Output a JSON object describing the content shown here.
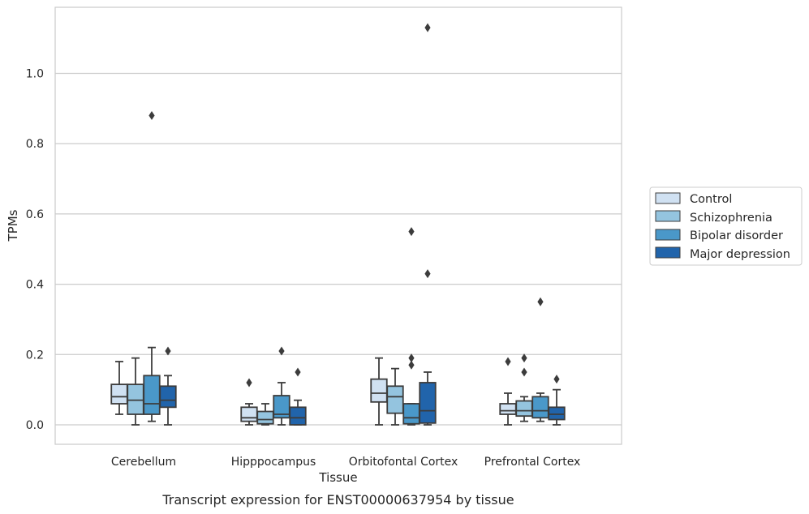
{
  "chart_data": {
    "type": "box",
    "xlabel": "Tissue",
    "ylabel": "TPMs",
    "caption": "Transcript expression for ENST00000637954 by tissue",
    "categories": [
      "Cerebellum",
      "Hipppocampus",
      "Orbitofontal Cortex",
      "Prefrontal Cortex"
    ],
    "ylim": [
      -0.055,
      1.185
    ],
    "yticks": [
      0.0,
      0.2,
      0.4,
      0.6,
      0.8,
      1.0
    ],
    "ytick_labels": [
      "0.0",
      "0.2",
      "0.4",
      "0.6",
      "0.8",
      "1.0"
    ],
    "grid": "horizontal",
    "legend_position": "right",
    "series": [
      {
        "name": "Control",
        "color": "#d0e1f2",
        "boxes": [
          {
            "whislo": 0.03,
            "q1": 0.06,
            "med": 0.08,
            "q3": 0.115,
            "whishi": 0.18,
            "fliers": []
          },
          {
            "whislo": 0.0,
            "q1": 0.01,
            "med": 0.02,
            "q3": 0.05,
            "whishi": 0.06,
            "fliers": [
              0.12
            ]
          },
          {
            "whislo": 0.0,
            "q1": 0.065,
            "med": 0.09,
            "q3": 0.13,
            "whishi": 0.19,
            "fliers": []
          },
          {
            "whislo": 0.0,
            "q1": 0.03,
            "med": 0.04,
            "q3": 0.06,
            "whishi": 0.09,
            "fliers": [
              0.18
            ]
          }
        ]
      },
      {
        "name": "Schizophrenia",
        "color": "#94c4df",
        "boxes": [
          {
            "whislo": 0.0,
            "q1": 0.03,
            "med": 0.07,
            "q3": 0.115,
            "whishi": 0.19,
            "fliers": []
          },
          {
            "whislo": 0.0,
            "q1": 0.003,
            "med": 0.015,
            "q3": 0.038,
            "whishi": 0.06,
            "fliers": []
          },
          {
            "whislo": 0.0,
            "q1": 0.033,
            "med": 0.08,
            "q3": 0.11,
            "whishi": 0.16,
            "fliers": []
          },
          {
            "whislo": 0.01,
            "q1": 0.025,
            "med": 0.04,
            "q3": 0.068,
            "whishi": 0.08,
            "fliers": [
              0.15,
              0.19
            ]
          }
        ]
      },
      {
        "name": "Bipolar disorder",
        "color": "#4a98c9",
        "boxes": [
          {
            "whislo": 0.01,
            "q1": 0.03,
            "med": 0.06,
            "q3": 0.14,
            "whishi": 0.22,
            "fliers": [
              0.88
            ]
          },
          {
            "whislo": 0.0,
            "q1": 0.02,
            "med": 0.03,
            "q3": 0.083,
            "whishi": 0.12,
            "fliers": [
              0.21
            ]
          },
          {
            "whislo": 0.0,
            "q1": 0.003,
            "med": 0.02,
            "q3": 0.06,
            "whishi": 0.06,
            "fliers": [
              0.17,
              0.19,
              0.55
            ]
          },
          {
            "whislo": 0.01,
            "q1": 0.02,
            "med": 0.04,
            "q3": 0.08,
            "whishi": 0.09,
            "fliers": [
              0.35
            ]
          }
        ]
      },
      {
        "name": "Major depression",
        "color": "#2164ab",
        "boxes": [
          {
            "whislo": 0.0,
            "q1": 0.05,
            "med": 0.07,
            "q3": 0.11,
            "whishi": 0.14,
            "fliers": [
              0.21
            ]
          },
          {
            "whislo": 0.0,
            "q1": 0.0,
            "med": 0.02,
            "q3": 0.05,
            "whishi": 0.07,
            "fliers": [
              0.15
            ]
          },
          {
            "whislo": 0.0,
            "q1": 0.005,
            "med": 0.04,
            "q3": 0.12,
            "whishi": 0.15,
            "fliers": [
              0.43,
              1.13
            ]
          },
          {
            "whislo": 0.0,
            "q1": 0.015,
            "med": 0.03,
            "q3": 0.05,
            "whishi": 0.1,
            "fliers": [
              0.13
            ]
          }
        ]
      }
    ]
  },
  "colors": {
    "grid": "#cccccc",
    "spine": "#cccccc",
    "box_edge": "#3c3c3c",
    "text": "#262626",
    "background": "#ffffff"
  }
}
